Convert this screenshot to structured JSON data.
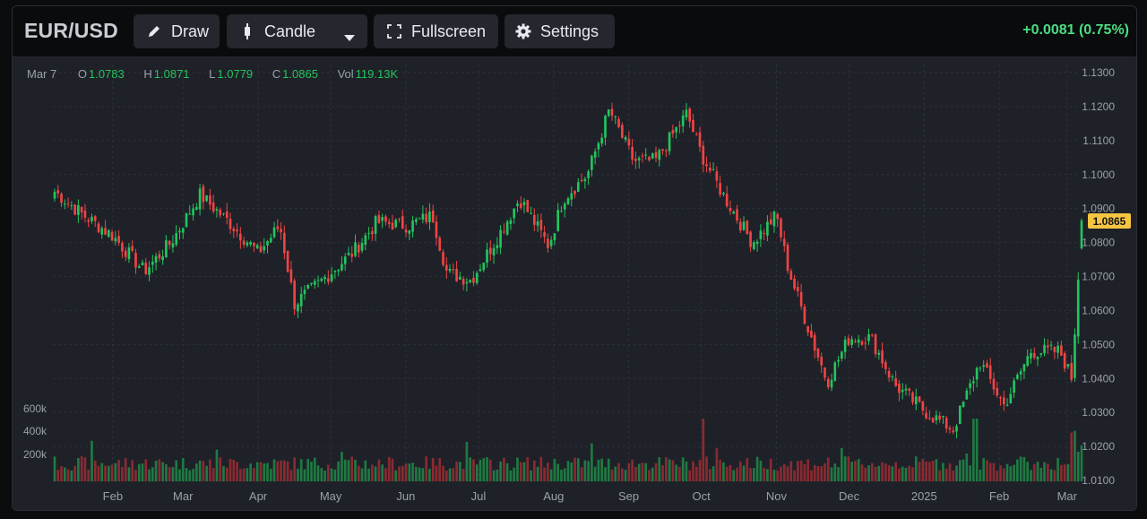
{
  "toolbar": {
    "symbol": "EUR/USD",
    "draw_label": "Draw",
    "chart_type_label": "Candle",
    "fullscreen_label": "Fullscreen",
    "settings_label": "Settings",
    "change_text": "+0.0081 (0.75%)"
  },
  "legend": {
    "date": "Mar 7",
    "open_key": "O",
    "open": "1.0783",
    "high_key": "H",
    "high": "1.0871",
    "low_key": "L",
    "low": "1.0779",
    "close_key": "C",
    "close": "1.0865",
    "vol_key": "Vol",
    "vol": "119.13K"
  },
  "colors": {
    "up": "#22c55e",
    "down": "#ef4444",
    "up_volume": "#1f7a43",
    "down_volume": "#8b2a31",
    "last_price_label_bg": "#f5c542",
    "change_text": "#4ade80"
  },
  "chart_data": {
    "type": "candlestick",
    "symbol": "EUR/USD",
    "price_axis_ticks": [
      "1.1300",
      "1.1200",
      "1.1100",
      "1.1000",
      "1.0900",
      "1.0800",
      "1.0700",
      "1.0600",
      "1.0500",
      "1.0400",
      "1.0300",
      "1.0200",
      "1.0100"
    ],
    "ylim": [
      1.01,
      1.13
    ],
    "volume_axis_ticks": [
      "600k",
      "400k",
      "200k"
    ],
    "time_axis_ticks": [
      "Feb",
      "Mar",
      "Apr",
      "May",
      "Jun",
      "Jul",
      "Aug",
      "Sep",
      "Oct",
      "Nov",
      "Dec",
      "2025",
      "Feb",
      "Mar"
    ],
    "last_price_label": "1.0865",
    "close_path": [
      [
        "2024-01-08",
        1.095
      ],
      [
        "2024-01-20",
        1.088
      ],
      [
        "2024-02-01",
        1.082
      ],
      [
        "2024-02-14",
        1.0715
      ],
      [
        "2024-02-25",
        1.08
      ],
      [
        "2024-03-08",
        1.094
      ],
      [
        "2024-03-20",
        1.086
      ],
      [
        "2024-04-01",
        1.077
      ],
      [
        "2024-04-10",
        1.085
      ],
      [
        "2024-04-16",
        1.062
      ],
      [
        "2024-04-26",
        1.068
      ],
      [
        "2024-05-10",
        1.077
      ],
      [
        "2024-05-20",
        1.086
      ],
      [
        "2024-06-02",
        1.085
      ],
      [
        "2024-06-12",
        1.088
      ],
      [
        "2024-06-18",
        1.071
      ],
      [
        "2024-06-28",
        1.069
      ],
      [
        "2024-07-10",
        1.083
      ],
      [
        "2024-07-18",
        1.093
      ],
      [
        "2024-07-30",
        1.079
      ],
      [
        "2024-08-05",
        1.093
      ],
      [
        "2024-08-15",
        1.1
      ],
      [
        "2024-08-24",
        1.119
      ],
      [
        "2024-09-03",
        1.104
      ],
      [
        "2024-09-12",
        1.104
      ],
      [
        "2024-09-25",
        1.118
      ],
      [
        "2024-10-01",
        1.106
      ],
      [
        "2024-10-10",
        1.094
      ],
      [
        "2024-10-22",
        1.08
      ],
      [
        "2024-11-01",
        1.088
      ],
      [
        "2024-11-06",
        1.072
      ],
      [
        "2024-11-15",
        1.053
      ],
      [
        "2024-11-22",
        1.039
      ],
      [
        "2024-12-01",
        1.052
      ],
      [
        "2024-12-10",
        1.052
      ],
      [
        "2024-12-20",
        1.038
      ],
      [
        "2025-01-02",
        1.03
      ],
      [
        "2025-01-13",
        1.025
      ],
      [
        "2025-01-24",
        1.045
      ],
      [
        "2025-02-03",
        1.032
      ],
      [
        "2025-02-14",
        1.048
      ],
      [
        "2025-02-26",
        1.048
      ],
      [
        "2025-03-03",
        1.04
      ],
      [
        "2025-03-07",
        1.0865
      ]
    ],
    "volume_max_approx": 600000
  }
}
